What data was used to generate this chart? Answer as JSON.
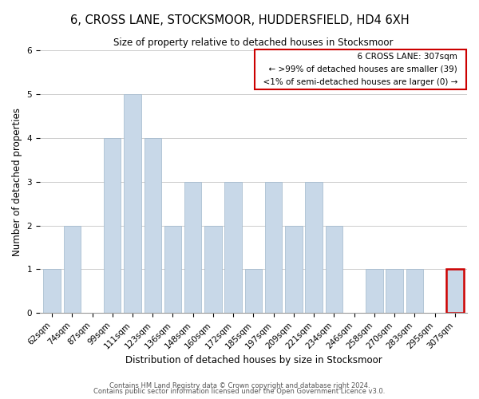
{
  "title": "6, CROSS LANE, STOCKSMOOR, HUDDERSFIELD, HD4 6XH",
  "subtitle": "Size of property relative to detached houses in Stocksmoor",
  "xlabel": "Distribution of detached houses by size in Stocksmoor",
  "ylabel": "Number of detached properties",
  "bar_labels": [
    "62sqm",
    "74sqm",
    "87sqm",
    "99sqm",
    "111sqm",
    "123sqm",
    "136sqm",
    "148sqm",
    "160sqm",
    "172sqm",
    "185sqm",
    "197sqm",
    "209sqm",
    "221sqm",
    "234sqm",
    "246sqm",
    "258sqm",
    "270sqm",
    "283sqm",
    "295sqm",
    "307sqm"
  ],
  "bar_values": [
    1,
    2,
    0,
    4,
    5,
    4,
    2,
    3,
    2,
    3,
    1,
    3,
    2,
    3,
    2,
    0,
    1,
    1,
    1,
    0,
    1
  ],
  "bar_color": "#c8d8e8",
  "bar_edgecolor": "#a0b8cc",
  "highlight_index": 20,
  "highlight_edgecolor": "#cc0000",
  "ylim": [
    0,
    6
  ],
  "yticks": [
    0,
    1,
    2,
    3,
    4,
    5,
    6
  ],
  "annotation_title": "6 CROSS LANE: 307sqm",
  "annotation_line1": "← >99% of detached houses are smaller (39)",
  "annotation_line2": "<1% of semi-detached houses are larger (0) →",
  "annotation_border_color": "#cc0000",
  "footer_line1": "Contains HM Land Registry data © Crown copyright and database right 2024.",
  "footer_line2": "Contains public sector information licensed under the Open Government Licence v3.0.",
  "bg_color": "#ffffff",
  "grid_color": "#cccccc",
  "title_fontsize": 10.5,
  "subtitle_fontsize": 8.5,
  "xlabel_fontsize": 8.5,
  "ylabel_fontsize": 8.5,
  "tick_fontsize": 7.5,
  "annotation_fontsize": 7.5,
  "footer_fontsize": 6.0
}
